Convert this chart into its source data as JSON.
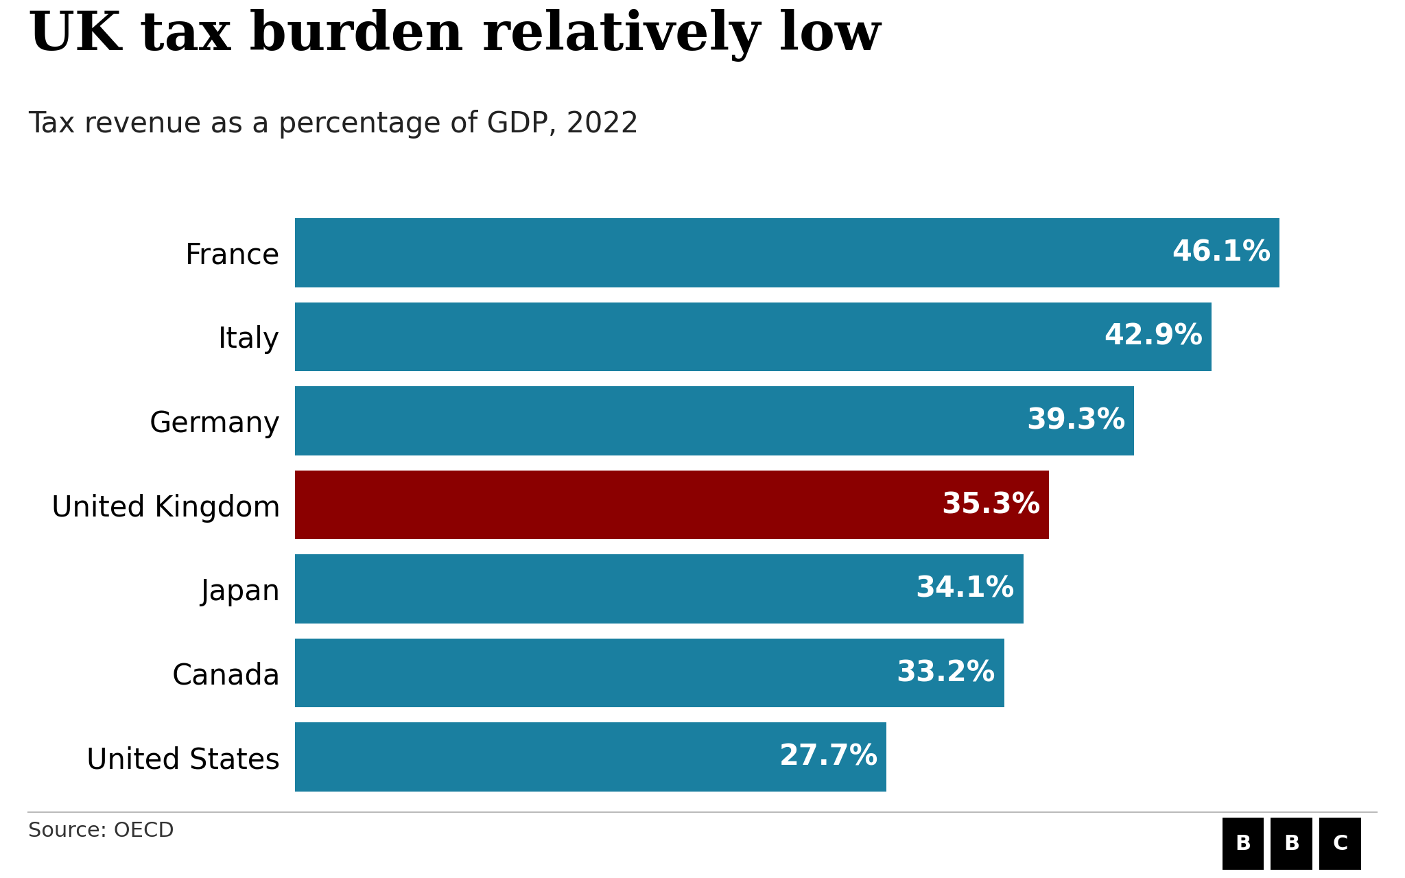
{
  "title": "UK tax burden relatively low",
  "subtitle": "Tax revenue as a percentage of GDP, 2022",
  "source": "Source: OECD",
  "categories": [
    "France",
    "Italy",
    "Germany",
    "United Kingdom",
    "Japan",
    "Canada",
    "United States"
  ],
  "values": [
    46.1,
    42.9,
    39.3,
    35.3,
    34.1,
    33.2,
    27.7
  ],
  "bar_colors": [
    "#1a7fa0",
    "#1a7fa0",
    "#1a7fa0",
    "#8b0000",
    "#1a7fa0",
    "#1a7fa0",
    "#1a7fa0"
  ],
  "label_color": "#ffffff",
  "background_color": "#ffffff",
  "title_color": "#000000",
  "subtitle_color": "#222222",
  "source_color": "#333333",
  "xlim": [
    0,
    50
  ],
  "bar_height": 0.82,
  "title_fontsize": 56,
  "subtitle_fontsize": 30,
  "label_fontsize": 30,
  "tick_fontsize": 30,
  "source_fontsize": 22
}
